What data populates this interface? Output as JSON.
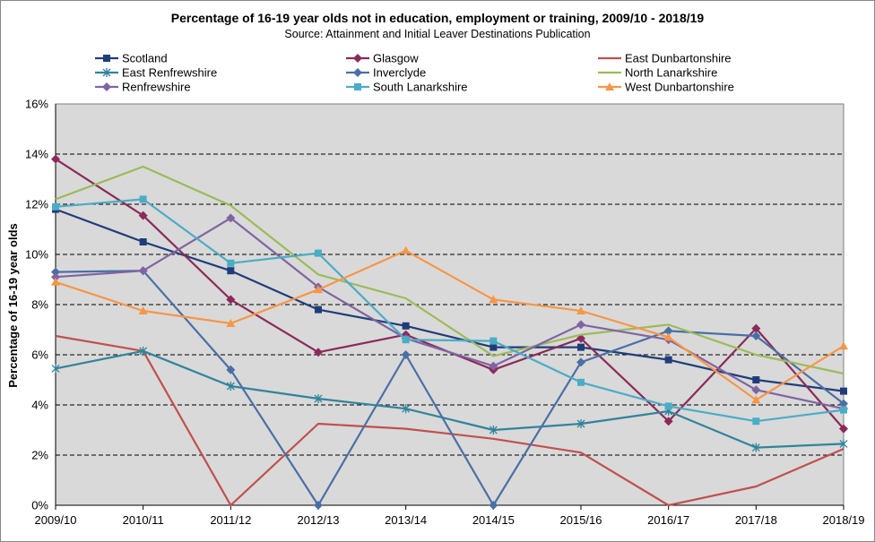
{
  "chart_data": {
    "type": "line",
    "title": "Percentage of 16-19 year olds not in education, employment or training, 2009/10 - 2018/19",
    "subtitle": "Source: Attainment and Initial Leaver Destinations Publication",
    "ylabel": "Percentage of 16-19 year olds",
    "xlabel": "",
    "categories": [
      "2009/10",
      "2010/11",
      "2011/12",
      "2012/13",
      "2013/14",
      "2014/15",
      "2015/16",
      "2016/17",
      "2017/18",
      "2018/19"
    ],
    "ylim": [
      0,
      16
    ],
    "yticks": [
      0,
      2,
      4,
      6,
      8,
      10,
      12,
      14,
      16
    ],
    "ytick_labels": [
      "0%",
      "2%",
      "4%",
      "6%",
      "8%",
      "10%",
      "12%",
      "14%",
      "16%"
    ],
    "grid": true,
    "plot_background": "#d9d9d9",
    "legend_position": "top",
    "series": [
      {
        "name": "Scotland",
        "color": "#1f3d7a",
        "marker": "square",
        "values": [
          11.8,
          10.5,
          9.35,
          7.8,
          7.15,
          6.3,
          6.3,
          5.8,
          5.0,
          4.55
        ]
      },
      {
        "name": "Glasgow",
        "color": "#8b2a5a",
        "marker": "diamond",
        "values": [
          13.8,
          11.55,
          8.2,
          6.1,
          6.8,
          5.4,
          6.65,
          3.35,
          7.05,
          3.05
        ]
      },
      {
        "name": "East Dunbartonshire",
        "color": "#c0504d",
        "marker": "none",
        "values": [
          6.75,
          6.15,
          0.0,
          3.25,
          3.05,
          2.65,
          2.1,
          0.0,
          0.75,
          2.25
        ]
      },
      {
        "name": "East Renfrewshire",
        "color": "#31849b",
        "marker": "asterisk",
        "values": [
          5.45,
          6.15,
          4.75,
          4.25,
          3.85,
          3.0,
          3.25,
          3.75,
          2.3,
          2.45
        ]
      },
      {
        "name": "Inverclyde",
        "color": "#4a6fa5",
        "marker": "diamond",
        "values": [
          9.3,
          9.35,
          5.4,
          0.0,
          6.0,
          0.0,
          5.7,
          6.95,
          6.75,
          4.05
        ]
      },
      {
        "name": "North Lanarkshire",
        "color": "#9bbb59",
        "marker": "none",
        "values": [
          12.2,
          13.5,
          11.95,
          9.2,
          8.25,
          5.95,
          6.8,
          7.2,
          6.0,
          5.25
        ]
      },
      {
        "name": "Renfrewshire",
        "color": "#8064a2",
        "marker": "diamond",
        "values": [
          9.1,
          9.35,
          11.45,
          8.7,
          6.65,
          5.55,
          7.2,
          6.6,
          4.6,
          3.85
        ]
      },
      {
        "name": "South Lanarkshire",
        "color": "#4bacc6",
        "marker": "square",
        "values": [
          11.9,
          12.2,
          9.65,
          10.05,
          6.6,
          6.55,
          4.9,
          3.95,
          3.35,
          3.8
        ]
      },
      {
        "name": "West Dunbartonshire",
        "color": "#f79646",
        "marker": "triangle",
        "values": [
          8.9,
          7.75,
          7.25,
          8.6,
          10.15,
          8.2,
          7.75,
          6.7,
          4.2,
          6.35
        ]
      }
    ]
  }
}
